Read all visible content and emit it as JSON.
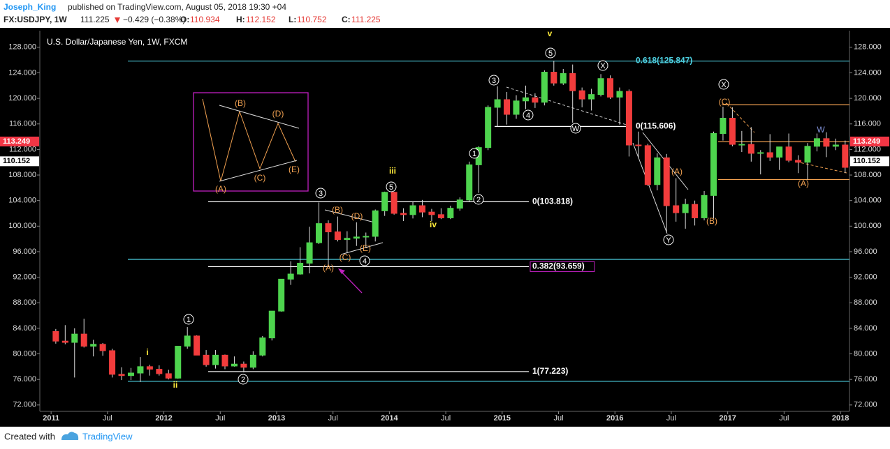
{
  "header": {
    "author": "Joseph_King",
    "published": "published on TradingView.com, August 05, 2018 19:30 +04",
    "symbol": "FX:USDJPY, 1W",
    "last": 111.225,
    "change": "−0.429 (−0.38%)",
    "o_label": "O:",
    "open": 110.934,
    "h_label": "H:",
    "high": 112.152,
    "l_label": "L:",
    "low": 110.752,
    "c_label": "C:",
    "close": 111.225
  },
  "footer": {
    "created": "Created with",
    "brand": "TradingView"
  },
  "chart_data": {
    "type": "candlestick",
    "title": "U.S. Dollar/Japanese Yen, 1W, FXCM",
    "up_color": "#4ed44e",
    "down_color": "#f23c3c",
    "wick_color": "#dddddd",
    "x": [
      "2011-01",
      "2011-02",
      "2011-03",
      "2011-04",
      "2011-05",
      "2011-06",
      "2011-07",
      "2011-08",
      "2011-09",
      "2011-10",
      "2011-11",
      "2011-12",
      "2012-01",
      "2012-02",
      "2012-03",
      "2012-04",
      "2012-05",
      "2012-06",
      "2012-07",
      "2012-08",
      "2012-09",
      "2012-10",
      "2012-11",
      "2012-12",
      "2013-01",
      "2013-02",
      "2013-03",
      "2013-04",
      "2013-05",
      "2013-06",
      "2013-07",
      "2013-08",
      "2013-09",
      "2013-10",
      "2013-11",
      "2013-12",
      "2014-01",
      "2014-02",
      "2014-03",
      "2014-04",
      "2014-05",
      "2014-06",
      "2014-07",
      "2014-08",
      "2014-09",
      "2014-10",
      "2014-11",
      "2014-12",
      "2015-01",
      "2015-02",
      "2015-03",
      "2015-04",
      "2015-05",
      "2015-06",
      "2015-07",
      "2015-08",
      "2015-09",
      "2015-10",
      "2015-11",
      "2015-12",
      "2016-01",
      "2016-02",
      "2016-03",
      "2016-04",
      "2016-05",
      "2016-06",
      "2016-07",
      "2016-08",
      "2016-09",
      "2016-10",
      "2016-11",
      "2016-12",
      "2017-01",
      "2017-02",
      "2017-03",
      "2017-04",
      "2017-05",
      "2017-06",
      "2017-07",
      "2017-08",
      "2017-09",
      "2017-10",
      "2017-11",
      "2017-12",
      "2018-01"
    ],
    "open": [
      83.5,
      82.0,
      81.8,
      83.1,
      81.2,
      81.5,
      80.5,
      76.8,
      76.6,
      77.0,
      78.0,
      77.6,
      76.9,
      76.2,
      81.2,
      82.8,
      79.8,
      78.3,
      79.8,
      78.1,
      78.4,
      77.9,
      79.8,
      82.5,
      86.7,
      91.7,
      92.5,
      94.2,
      97.4,
      100.4,
      99.1,
      97.9,
      98.1,
      98.3,
      98.4,
      102.4,
      105.3,
      102.0,
      101.8,
      103.2,
      102.2,
      101.8,
      101.3,
      102.8,
      104.1,
      109.6,
      112.3,
      118.6,
      119.8,
      117.5,
      119.6,
      120.1,
      119.4,
      124.1,
      122.4,
      123.9,
      121.2,
      119.9,
      120.6,
      123.1,
      120.2,
      121.1,
      112.7,
      112.6,
      106.5,
      110.7,
      103.2,
      102.1,
      103.4,
      101.3,
      104.8,
      114.5,
      116.9,
      112.8,
      112.8,
      111.4,
      111.5,
      110.8,
      112.4,
      110.3,
      110.0,
      112.5,
      113.7,
      112.5,
      112.7
    ],
    "high": [
      83.9,
      84.5,
      84.0,
      85.5,
      82.2,
      81.7,
      80.8,
      77.9,
      77.8,
      79.5,
      78.3,
      78.2,
      77.5,
      81.2,
      84.2,
      82.9,
      80.6,
      80.6,
      79.9,
      79.6,
      78.8,
      80.4,
      82.8,
      86.7,
      91.7,
      94.5,
      96.7,
      99.9,
      103.7,
      100.9,
      101.5,
      99.2,
      100.6,
      99.0,
      102.6,
      105.4,
      105.4,
      102.8,
      103.8,
      104.1,
      102.7,
      102.8,
      103.2,
      104.5,
      110.1,
      112.5,
      118.9,
      121.9,
      121.0,
      120.5,
      122.0,
      120.8,
      124.4,
      125.9,
      124.6,
      125.3,
      121.7,
      121.5,
      123.8,
      123.6,
      121.7,
      121.4,
      114.8,
      112.9,
      111.4,
      111.3,
      107.5,
      104.3,
      104.0,
      105.5,
      114.8,
      118.7,
      118.6,
      114.9,
      115.5,
      111.9,
      114.4,
      112.4,
      114.5,
      111.1,
      113.0,
      114.5,
      114.7,
      113.7,
      113.4
    ],
    "low": [
      81.6,
      81.5,
      76.3,
      81.0,
      79.6,
      79.7,
      76.3,
      75.9,
      75.9,
      75.6,
      76.6,
      76.6,
      76.0,
      76.1,
      80.8,
      79.8,
      78.0,
      77.7,
      77.6,
      78.0,
      77.1,
      77.6,
      79.6,
      82.1,
      86.6,
      90.8,
      92.4,
      92.6,
      97.2,
      93.8,
      97.6,
      95.8,
      96.9,
      96.6,
      97.6,
      101.6,
      101.8,
      100.8,
      101.2,
      101.4,
      100.8,
      101.1,
      101.1,
      102.4,
      103.8,
      105.2,
      111.9,
      115.6,
      115.9,
      116.8,
      118.3,
      118.5,
      118.9,
      122.0,
      122.1,
      116.2,
      118.6,
      118.1,
      120.3,
      119.9,
      115.9,
      110.9,
      110.7,
      106.3,
      105.6,
      99.0,
      100.7,
      99.6,
      100.1,
      100.9,
      101.2,
      113.4,
      112.5,
      111.6,
      110.1,
      108.1,
      110.2,
      108.8,
      110.0,
      108.3,
      107.3,
      111.7,
      110.8,
      111.9,
      108.3
    ],
    "close": [
      82.0,
      81.8,
      83.1,
      81.2,
      81.5,
      80.5,
      76.8,
      76.6,
      77.0,
      78.0,
      77.6,
      76.9,
      76.2,
      81.2,
      82.8,
      79.8,
      78.3,
      79.8,
      78.1,
      78.4,
      77.9,
      79.8,
      82.5,
      86.7,
      91.7,
      92.5,
      94.2,
      97.4,
      100.4,
      99.1,
      97.9,
      98.1,
      98.3,
      98.4,
      102.4,
      105.3,
      102.0,
      101.8,
      103.2,
      102.2,
      101.8,
      101.3,
      102.8,
      104.1,
      109.6,
      112.3,
      118.6,
      119.8,
      117.5,
      119.6,
      120.1,
      119.4,
      124.1,
      122.4,
      123.9,
      121.2,
      119.9,
      120.6,
      123.1,
      120.2,
      121.1,
      112.7,
      112.6,
      106.5,
      110.7,
      103.2,
      102.1,
      103.4,
      101.3,
      104.8,
      114.5,
      116.9,
      112.8,
      112.8,
      111.4,
      111.5,
      110.8,
      112.4,
      110.3,
      110.0,
      112.5,
      113.7,
      112.5,
      112.7,
      109.2
    ],
    "xlim": [
      2010.9,
      2018.08
    ],
    "xticks": [
      2011,
      {
        "value": 2011.5,
        "label": "Jul"
      },
      2012,
      {
        "value": 2012.5,
        "label": "Jul"
      },
      2013,
      {
        "value": 2013.5,
        "label": "Jul"
      },
      2014,
      {
        "value": 2014.5,
        "label": "Jul"
      },
      2015,
      {
        "value": 2015.5,
        "label": "Jul"
      },
      2016,
      {
        "value": 2016.5,
        "label": "Jul"
      },
      2017,
      {
        "value": 2017.5,
        "label": "Jul"
      },
      2018
    ],
    "ylim": [
      71,
      130.6
    ],
    "yticks": [
      {
        "value": 72,
        "label": "72.000"
      },
      {
        "value": 76,
        "label": "76.000"
      },
      {
        "value": 80,
        "label": "80.000"
      },
      {
        "value": 84,
        "label": "84.000"
      },
      {
        "value": 88,
        "label": "88.000"
      },
      {
        "value": 92,
        "label": "92.000"
      },
      {
        "value": 96,
        "label": "96.000"
      },
      {
        "value": 100,
        "label": "100.000"
      },
      {
        "value": 104,
        "label": "104.000"
      },
      {
        "value": 108,
        "label": "108.000"
      },
      {
        "value": 112,
        "label": "112.000"
      },
      {
        "value": 116,
        "label": "116.000"
      },
      {
        "value": 120,
        "label": "120.000"
      },
      {
        "value": 124,
        "label": "124.000"
      },
      {
        "value": 128,
        "label": "128.000"
      }
    ],
    "price_tags": [
      {
        "value": 113.249,
        "color": "#f23645",
        "text_color": "#ffffff"
      },
      {
        "value": 110.152,
        "color": "#ffffff",
        "text_color": "#000000"
      }
    ],
    "levels": [
      {
        "value": 125.847,
        "label": "0.618(125.847)",
        "color": "#4dd0e1"
      },
      {
        "value": 115.606,
        "label": "0(115.606)",
        "color": "#ffffff"
      },
      {
        "value": 103.818,
        "label": "0(103.818)",
        "color": "#ffffff"
      },
      {
        "value": 93.659,
        "label": "0.382(93.659)",
        "color": "#ffffff"
      },
      {
        "value": 77.223,
        "label": "1(77.223)",
        "color": "#ffffff"
      },
      {
        "value": 94.8,
        "color": "#4dd0e1"
      },
      {
        "value": 75.7,
        "color": "#4dd0e1"
      },
      {
        "value": 119,
        "color": "#f0a050"
      },
      {
        "value": 113.2,
        "color": "#f0a050"
      },
      {
        "value": 107.3,
        "color": "#f0a050"
      }
    ],
    "annotations": [
      {
        "text": "v",
        "color": "#ffeb3b"
      },
      {
        "text": "5",
        "color": "#ffffff",
        "circled": true
      },
      {
        "text": "X",
        "color": "#ffffff",
        "circled": true
      },
      {
        "text": "3",
        "color": "#ffffff",
        "circled": true
      },
      {
        "text": "4",
        "color": "#ffffff",
        "circled": true
      },
      {
        "text": "W",
        "color": "#ffffff",
        "circled": true
      },
      {
        "text": "1",
        "color": "#ffffff",
        "circled": true
      },
      {
        "text": "2",
        "color": "#ffffff",
        "circled": true
      },
      {
        "text": "iii",
        "color": "#ffeb3b"
      },
      {
        "text": "5",
        "color": "#ffffff",
        "circled": true
      },
      {
        "text": "3",
        "color": "#ffffff",
        "circled": true
      },
      {
        "text": "(B)",
        "color": "#f0a050"
      },
      {
        "text": "(D)",
        "color": "#f0a050"
      },
      {
        "text": "(C)",
        "color": "#f0a050"
      },
      {
        "text": "(E)",
        "color": "#f0a050"
      },
      {
        "text": "(A)",
        "color": "#f0a050"
      },
      {
        "text": "4",
        "color": "#ffffff",
        "circled": true
      },
      {
        "text": "iv",
        "color": "#ffeb3b"
      },
      {
        "text": "1",
        "color": "#ffffff",
        "circled": true
      },
      {
        "text": "i",
        "color": "#ffeb3b"
      },
      {
        "text": "ii",
        "color": "#ffeb3b"
      },
      {
        "text": "2",
        "color": "#ffffff",
        "circled": true
      },
      {
        "text": "X",
        "color": "#ffffff",
        "circled": true
      },
      {
        "text": "(C)",
        "color": "#f0a050"
      },
      {
        "text": "(A)",
        "color": "#f0a050"
      },
      {
        "text": "(B)",
        "color": "#f0a050"
      },
      {
        "text": "Y",
        "color": "#ffffff",
        "circled": true
      },
      {
        "text": "W",
        "color": "#7e8fd6"
      },
      {
        "text": "(A)",
        "color": "#f0a050"
      },
      {
        "text": "(B)",
        "color": "#f0a050"
      },
      {
        "text": "(D)",
        "color": "#f0a050"
      },
      {
        "text": "(A)",
        "color": "#f0a050"
      },
      {
        "text": "(C)",
        "color": "#f0a050"
      },
      {
        "text": "(E)",
        "color": "#f0a050"
      }
    ]
  }
}
